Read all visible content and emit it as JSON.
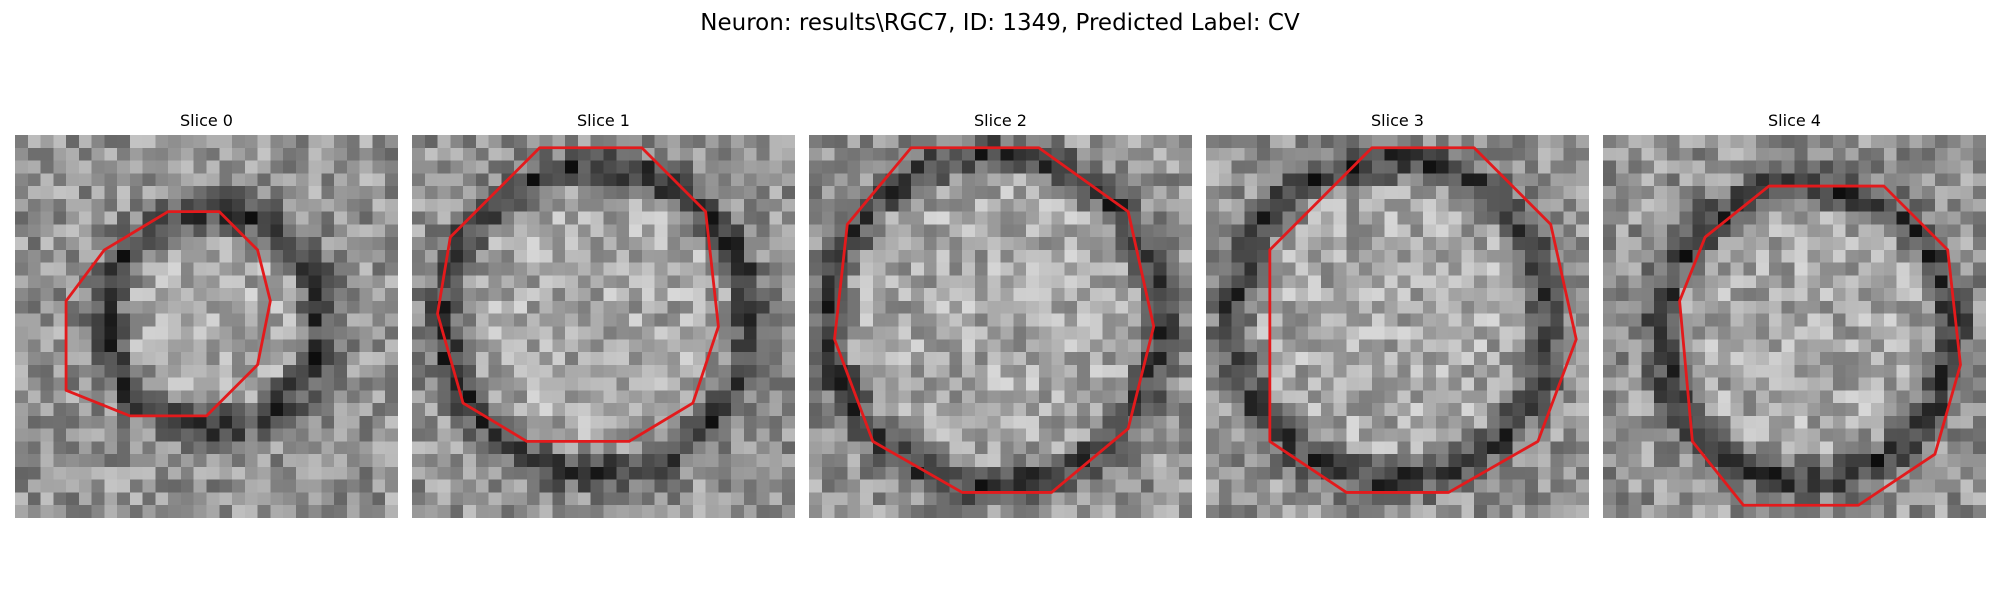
{
  "figure": {
    "title": "Neuron: results\\RGC7, ID: 1349, Predicted Label: CV",
    "contour_color": "#e31a1c"
  },
  "panels": [
    {
      "title": "Slice 0"
    },
    {
      "title": "Slice 1"
    },
    {
      "title": "Slice 2"
    },
    {
      "title": "Slice 3"
    },
    {
      "title": "Slice 4"
    }
  ]
}
